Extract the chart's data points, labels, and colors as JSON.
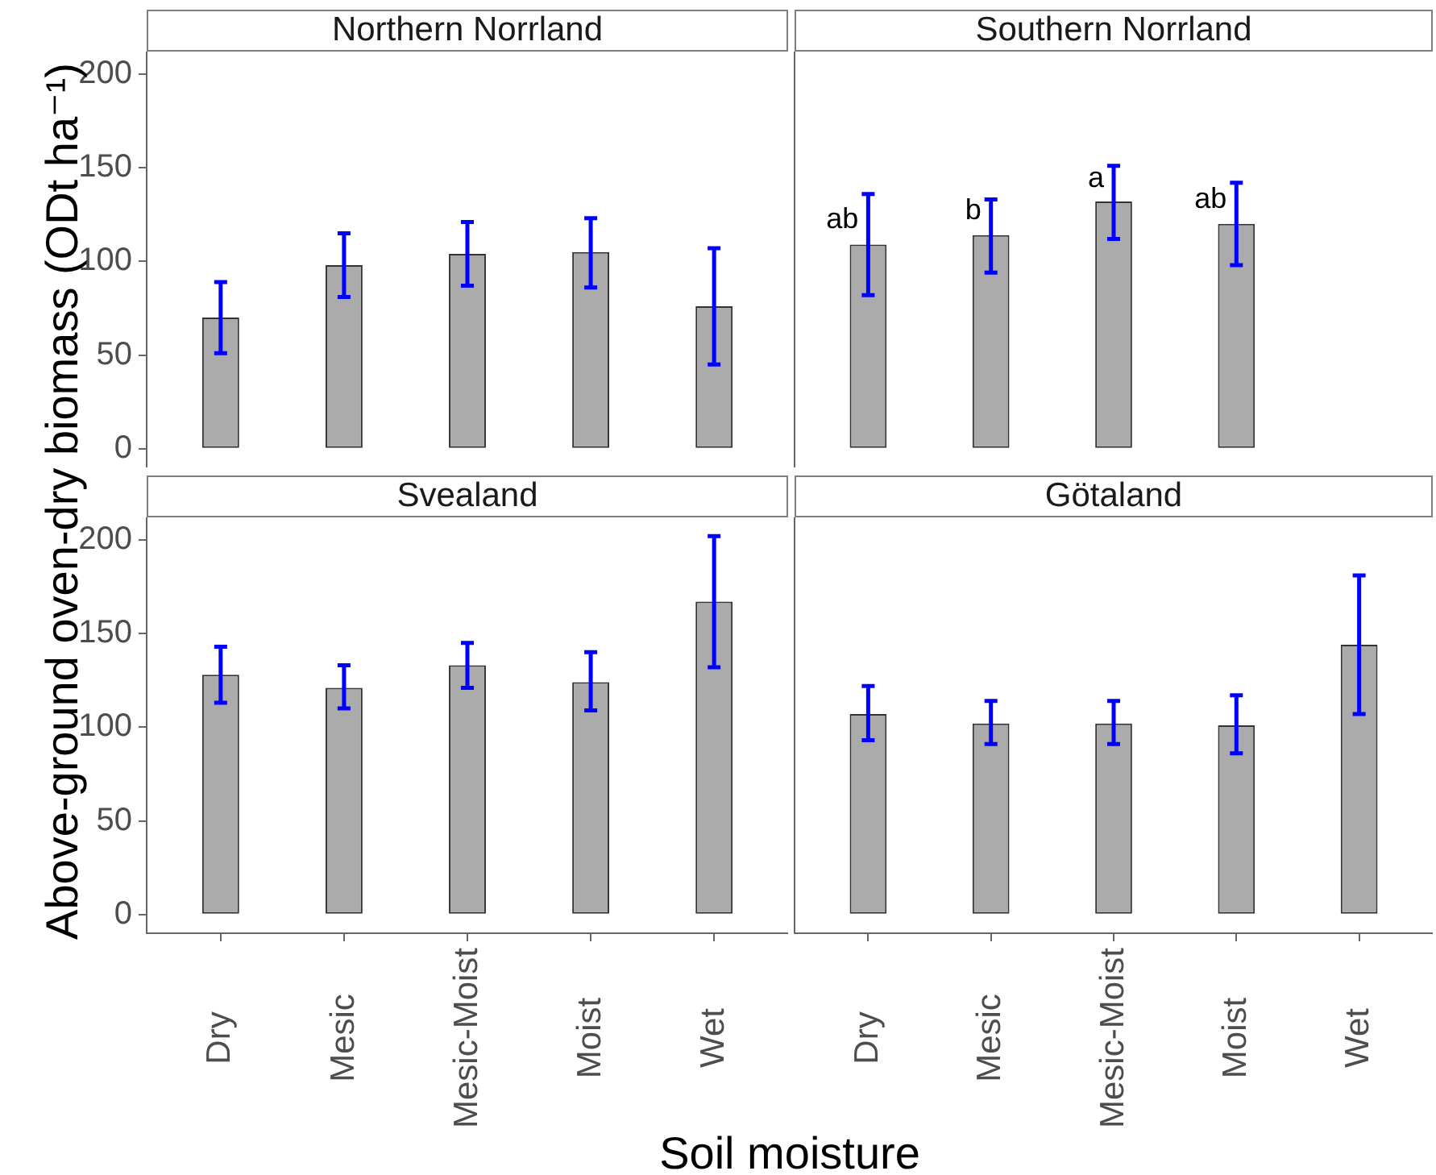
{
  "chart_data": [
    {
      "type": "bar",
      "title": "Northern Norrland",
      "ylabel": "Above-ground oven-dry biomass (ODt ha⁻¹)",
      "categories": [
        "Dry",
        "Mesic",
        "Mesic-Moist",
        "Moist",
        "Wet"
      ],
      "values": [
        70,
        98,
        104,
        105,
        76
      ],
      "errors": [
        [
          51,
          89
        ],
        [
          81,
          115
        ],
        [
          87,
          121
        ],
        [
          86,
          123
        ],
        [
          45,
          107
        ]
      ],
      "color": "#ababab",
      "ylim": [
        -10,
        212
      ],
      "yticks": [
        0,
        50,
        100,
        150,
        200
      ],
      "tick_labels": "y"
    },
    {
      "type": "bar",
      "title": "Southern Norrland",
      "categories": [
        "Dry",
        "Mesic",
        "Mesic-Moist",
        "Moist",
        "Wet"
      ],
      "values": [
        109,
        114,
        132,
        120,
        null
      ],
      "errors": [
        [
          82,
          136
        ],
        [
          94,
          133
        ],
        [
          112,
          151
        ],
        [
          98,
          142
        ],
        null
      ],
      "color": "#ababab",
      "ylim": [
        -10,
        212
      ],
      "yticks": [
        0,
        50,
        100,
        150,
        200
      ],
      "tick_labels": false,
      "annotations": [
        {
          "text": "ab",
          "x": "Dry",
          "y": 122
        },
        {
          "text": "b",
          "x": "Mesic",
          "y": 127
        },
        {
          "text": "a",
          "x": "Mesic-Moist",
          "y": 144
        },
        {
          "text": "ab",
          "x": "Moist",
          "y": 133
        }
      ]
    },
    {
      "type": "bar",
      "title": "Svealand",
      "xlabel": "Soil moisture",
      "categories": [
        "Dry",
        "Mesic",
        "Mesic-Moist",
        "Moist",
        "Wet"
      ],
      "values": [
        128,
        121,
        133,
        124,
        167
      ],
      "errors": [
        [
          113,
          143
        ],
        [
          110,
          133
        ],
        [
          121,
          145
        ],
        [
          109,
          140
        ],
        [
          132,
          202
        ]
      ],
      "color": "#ababab",
      "ylim": [
        -10,
        212
      ],
      "yticks": [
        0,
        50,
        100,
        150,
        200
      ]
    },
    {
      "type": "bar",
      "title": "Götaland",
      "categories": [
        "Dry",
        "Mesic",
        "Mesic-Moist",
        "Moist",
        "Wet"
      ],
      "values": [
        107,
        102,
        102,
        101,
        144
      ],
      "errors": [
        [
          93,
          122
        ],
        [
          91,
          114
        ],
        [
          91,
          114
        ],
        [
          86,
          117
        ],
        [
          107,
          181
        ]
      ],
      "color": "#ababab",
      "ylim": [
        -10,
        212
      ],
      "yticks": [
        0,
        50,
        100,
        150,
        200
      ],
      "tick_labels": "x"
    }
  ]
}
